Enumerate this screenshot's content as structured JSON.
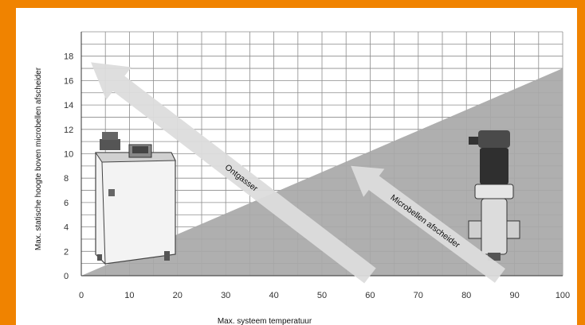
{
  "chart_data": {
    "type": "area",
    "xlabel": "Max. systeem temperatuur",
    "ylabel": "Max. statische hoogte boven microbellen afscheider",
    "xlim": [
      0,
      100
    ],
    "ylim": [
      0,
      20
    ],
    "x_ticks": [
      "0",
      "10",
      "20",
      "30",
      "40",
      "50",
      "60",
      "70",
      "80",
      "90",
      "100"
    ],
    "y_ticks": [
      "0",
      "2",
      "4",
      "6",
      "8",
      "10",
      "12",
      "14",
      "16",
      "18"
    ],
    "grid": true,
    "series": [
      {
        "x": [
          0,
          100
        ],
        "y": [
          0,
          17
        ]
      }
    ],
    "annotations": [
      {
        "text": "Ontgasser",
        "from": [
          60,
          0
        ],
        "to": [
          2,
          17.5
        ]
      },
      {
        "text": "Microbellen afscheider",
        "from": [
          87,
          0
        ],
        "to": [
          56,
          9
        ]
      }
    ],
    "colors": {
      "background": "#f08300",
      "area": "#a8a8a8",
      "grid": "#8c8c8c",
      "arrow": "#dcdcdc"
    },
    "icons": [
      "degasser-unit-icon",
      "microbubble-separator-icon"
    ]
  }
}
